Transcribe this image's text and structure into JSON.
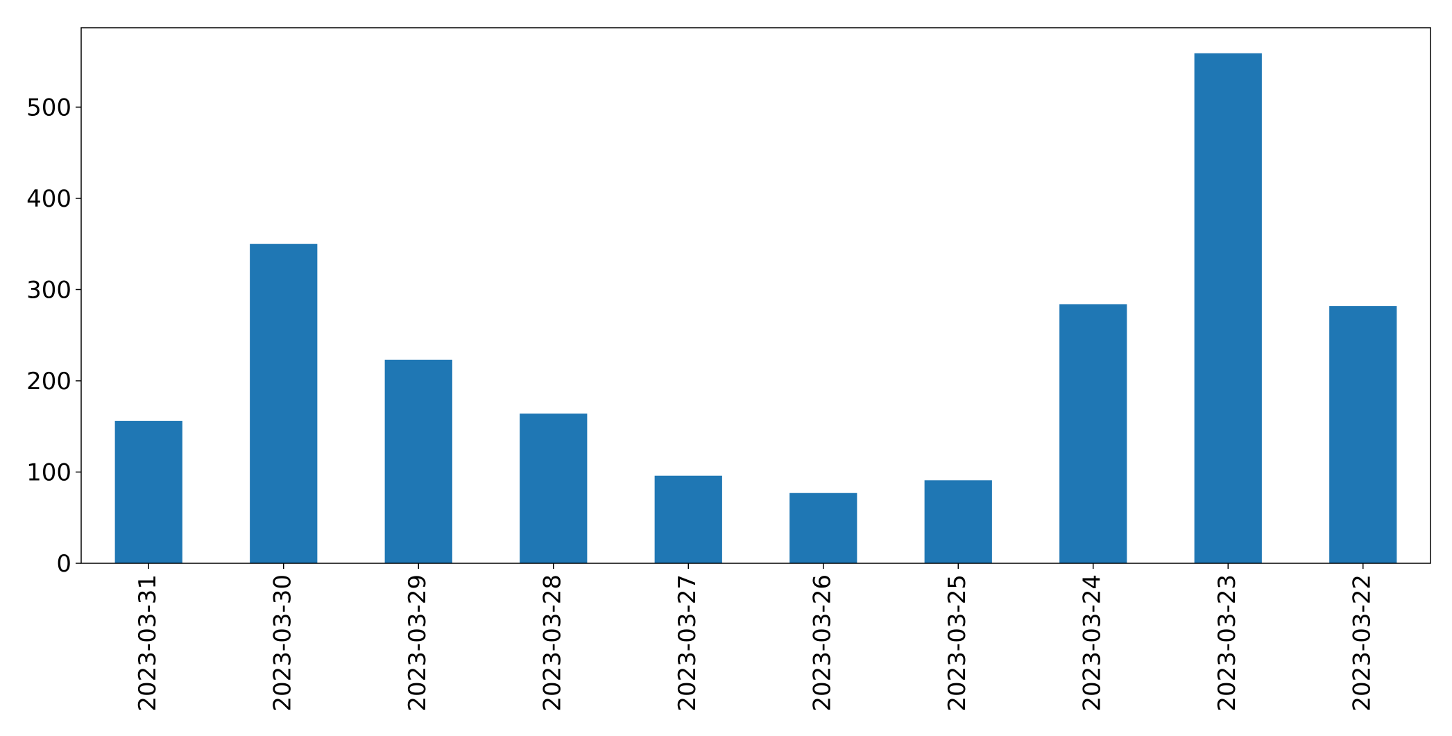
{
  "chart_data": {
    "type": "bar",
    "categories": [
      "2023-03-31",
      "2023-03-30",
      "2023-03-29",
      "2023-03-28",
      "2023-03-27",
      "2023-03-26",
      "2023-03-25",
      "2023-03-24",
      "2023-03-23",
      "2023-03-22"
    ],
    "values": [
      156,
      350,
      223,
      164,
      96,
      77,
      91,
      284,
      559,
      282
    ],
    "yticks": [
      0,
      100,
      200,
      300,
      400,
      500
    ],
    "ylim": [
      0,
      587
    ],
    "title": "",
    "xlabel": "",
    "ylabel": "",
    "grid": false,
    "legend": "none",
    "bar_color": "#1f77b4"
  }
}
